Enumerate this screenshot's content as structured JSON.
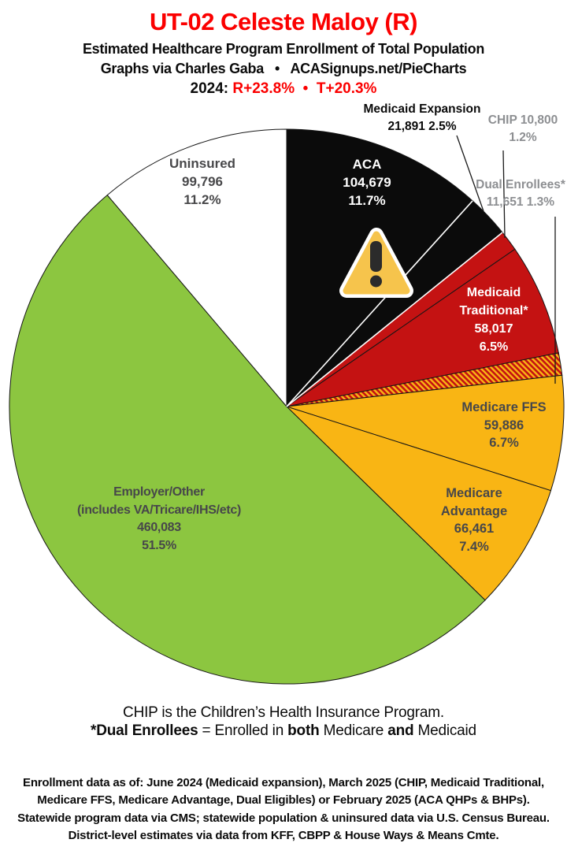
{
  "header": {
    "title": "UT-02 Celeste Maloy (R)",
    "subtitle1": "Estimated Healthcare Program Enrollment of Total Population",
    "subtitle2": "Graphs via Charles Gaba   •   ACASignups.net/PieCharts",
    "subtitle3_black": "2024: ",
    "subtitle3_red": "R+23.8%  •  T+20.3%"
  },
  "theme": {
    "accent_red": "#fb0000",
    "label_dark_gray": "#47474a",
    "label_light_gray": "#8d8f92",
    "warning_yellow": "#f6c44c",
    "warning_dark": "#2b2b2b"
  },
  "chart_data": {
    "type": "pie",
    "title": "UT-02 Celeste Maloy (R) — Estimated Healthcare Program Enrollment of Total Population",
    "start_angle_deg": 0,
    "direction": "clockwise",
    "outline_color": "#161616",
    "hatch_colors": {
      "red": "#c41212",
      "gold": "#f9b514"
    },
    "white_separators_after_slice": [
      0,
      1
    ],
    "slices": [
      {
        "name": "ACA",
        "value": 104679,
        "pct": 11.7,
        "color": "#0b0b0b",
        "label_lines": [
          "ACA",
          "104,679",
          "11.7%"
        ]
      },
      {
        "name": "Medicaid Expansion",
        "value": 21891,
        "pct": 2.5,
        "color": "#0b0b0b",
        "label_lines": [
          "Medicaid Expansion",
          "21,891 2.5%"
        ]
      },
      {
        "name": "CHIP",
        "value": 10800,
        "pct": 1.2,
        "color": "#c41212",
        "label_lines": [
          "CHIP 10,800",
          "1.2%"
        ]
      },
      {
        "name": "Medicaid Traditional",
        "value": 58017,
        "pct": 6.5,
        "color": "#c41212",
        "label_lines": [
          "Medicaid",
          "Traditional*",
          "58,017",
          "6.5%"
        ]
      },
      {
        "name": "Dual Enrollees",
        "value": 11651,
        "pct": 1.3,
        "color": "hatch",
        "label_lines": [
          "Dual Enrollees*",
          "11,651 1.3%"
        ]
      },
      {
        "name": "Medicare FFS",
        "value": 59886,
        "pct": 6.7,
        "color": "#f9b514",
        "label_lines": [
          "Medicare FFS",
          "59,886",
          "6.7%"
        ]
      },
      {
        "name": "Medicare Advantage",
        "value": 66461,
        "pct": 7.4,
        "color": "#f9b514",
        "label_lines": [
          "Medicare",
          "Advantage",
          "66,461",
          "7.4%"
        ]
      },
      {
        "name": "Employer/Other",
        "value": 460083,
        "pct": 51.5,
        "color": "#8cc640",
        "label_lines": [
          "Employer/Other",
          "(includes VA/Tricare/IHS/etc)",
          "460,083",
          "51.5%"
        ]
      },
      {
        "name": "Uninsured",
        "value": 99796,
        "pct": 11.2,
        "color": "#ffffff",
        "label_lines": [
          "Uninsured",
          "99,796",
          "11.2%"
        ]
      }
    ]
  },
  "notes": {
    "line1": "CHIP is the Children’s Health Insurance Program.",
    "line2": {
      "p1": "*Dual Enrollees",
      "p2": " = Enrolled in ",
      "p3": "both",
      "p4": " Medicare ",
      "p5": "and",
      "p6": " Medicaid"
    }
  },
  "footer": {
    "lines": [
      "Enrollment data as of: June 2024 (Medicaid expansion), March 2025 (CHIP, Medicaid Traditional,",
      "Medicare FFS, Medicare Advantage, Dual Eligibles) or February 2025 (ACA QHPs & BHPs).",
      "Statewide program data via CMS; statewide population & uninsured data via U.S. Census Bureau.",
      "District-level estimates via data from KFF, CBPP & House Ways & Means Cmte."
    ]
  }
}
